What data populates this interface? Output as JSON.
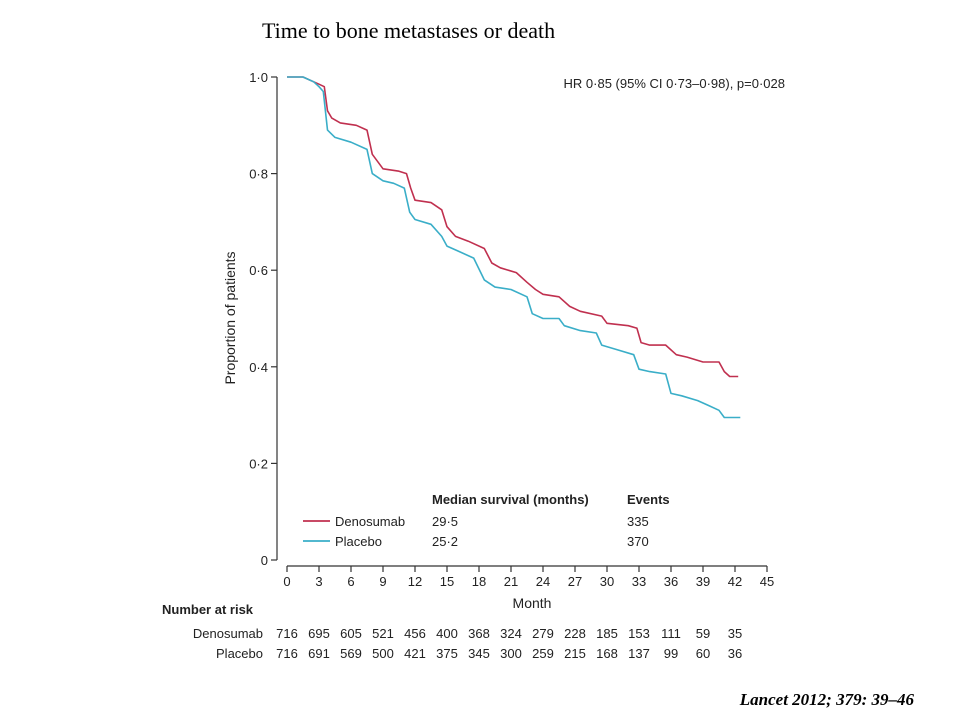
{
  "slide": {
    "title": "Time to bone metastases or death",
    "citation": "Lancet 2012; 379: 39–46"
  },
  "chart_data": {
    "type": "line",
    "title": "",
    "xlabel": "Month",
    "ylabel": "Proportion of patients",
    "xlim": [
      0,
      45
    ],
    "ylim": [
      0,
      1.0
    ],
    "x_ticks": [
      0,
      3,
      6,
      9,
      12,
      15,
      18,
      21,
      24,
      27,
      30,
      33,
      36,
      39,
      42,
      45
    ],
    "y_ticks": [
      {
        "value": 0,
        "label": "0"
      },
      {
        "value": 0.2,
        "label": "0·2"
      },
      {
        "value": 0.4,
        "label": "0·4"
      },
      {
        "value": 0.6,
        "label": "0·6"
      },
      {
        "value": 0.8,
        "label": "0·8"
      },
      {
        "value": 1.0,
        "label": "1·0"
      }
    ],
    "grid": false,
    "annotation": "HR 0·85 (95% CI 0·73–0·98), p=0·028",
    "legend": {
      "placement": "bottom-center",
      "headers": [
        "Median survival (months)",
        "Events"
      ],
      "rows": [
        {
          "name": "Denosumab",
          "median": "29·5",
          "events": "335"
        },
        {
          "name": "Placebo",
          "median": "25·2",
          "events": "370"
        }
      ]
    },
    "series": [
      {
        "name": "Denosumab",
        "color": "#c0304f",
        "points": [
          [
            0,
            1.0
          ],
          [
            1.5,
            1.0
          ],
          [
            2.5,
            0.99
          ],
          [
            3.0,
            0.985
          ],
          [
            3.5,
            0.98
          ],
          [
            3.8,
            0.93
          ],
          [
            4.2,
            0.915
          ],
          [
            5.0,
            0.905
          ],
          [
            6.5,
            0.9
          ],
          [
            7.5,
            0.89
          ],
          [
            8.0,
            0.84
          ],
          [
            9.0,
            0.81
          ],
          [
            10.5,
            0.805
          ],
          [
            11.2,
            0.8
          ],
          [
            11.6,
            0.77
          ],
          [
            12.0,
            0.745
          ],
          [
            13.5,
            0.74
          ],
          [
            14.5,
            0.725
          ],
          [
            15.0,
            0.69
          ],
          [
            15.8,
            0.67
          ],
          [
            17.0,
            0.66
          ],
          [
            18.5,
            0.645
          ],
          [
            19.2,
            0.615
          ],
          [
            20.0,
            0.605
          ],
          [
            21.5,
            0.595
          ],
          [
            22.5,
            0.575
          ],
          [
            23.3,
            0.56
          ],
          [
            24.0,
            0.55
          ],
          [
            25.5,
            0.545
          ],
          [
            26.5,
            0.525
          ],
          [
            27.5,
            0.515
          ],
          [
            29.5,
            0.505
          ],
          [
            30.0,
            0.49
          ],
          [
            32.0,
            0.485
          ],
          [
            32.8,
            0.48
          ],
          [
            33.2,
            0.45
          ],
          [
            34.0,
            0.445
          ],
          [
            35.5,
            0.445
          ],
          [
            36.5,
            0.425
          ],
          [
            37.5,
            0.42
          ],
          [
            39.0,
            0.41
          ],
          [
            40.5,
            0.41
          ],
          [
            41.0,
            0.39
          ],
          [
            41.5,
            0.38
          ],
          [
            42.3,
            0.38
          ]
        ]
      },
      {
        "name": "Placebo",
        "color": "#3aaec8",
        "points": [
          [
            0,
            1.0
          ],
          [
            1.5,
            1.0
          ],
          [
            2.5,
            0.99
          ],
          [
            3.0,
            0.98
          ],
          [
            3.4,
            0.97
          ],
          [
            3.8,
            0.89
          ],
          [
            4.5,
            0.875
          ],
          [
            6.0,
            0.865
          ],
          [
            7.5,
            0.85
          ],
          [
            8.0,
            0.8
          ],
          [
            9.0,
            0.785
          ],
          [
            10.0,
            0.78
          ],
          [
            11.0,
            0.77
          ],
          [
            11.5,
            0.72
          ],
          [
            12.0,
            0.705
          ],
          [
            13.5,
            0.695
          ],
          [
            14.5,
            0.67
          ],
          [
            15.0,
            0.65
          ],
          [
            16.0,
            0.64
          ],
          [
            17.5,
            0.625
          ],
          [
            18.5,
            0.58
          ],
          [
            19.5,
            0.565
          ],
          [
            21.0,
            0.56
          ],
          [
            22.5,
            0.545
          ],
          [
            23.0,
            0.51
          ],
          [
            24.0,
            0.5
          ],
          [
            25.5,
            0.5
          ],
          [
            26.0,
            0.485
          ],
          [
            27.5,
            0.475
          ],
          [
            29.0,
            0.47
          ],
          [
            29.5,
            0.445
          ],
          [
            31.0,
            0.435
          ],
          [
            32.5,
            0.425
          ],
          [
            33.0,
            0.395
          ],
          [
            34.0,
            0.39
          ],
          [
            35.5,
            0.385
          ],
          [
            36.0,
            0.345
          ],
          [
            37.0,
            0.34
          ],
          [
            38.5,
            0.33
          ],
          [
            39.5,
            0.32
          ],
          [
            40.5,
            0.31
          ],
          [
            41.0,
            0.295
          ],
          [
            42.5,
            0.295
          ]
        ]
      }
    ],
    "number_at_risk": {
      "title": "Number at risk",
      "rows": [
        {
          "name": "Denosumab",
          "values": [
            716,
            695,
            605,
            521,
            456,
            400,
            368,
            324,
            279,
            228,
            185,
            153,
            111,
            59,
            35
          ]
        },
        {
          "name": "Placebo",
          "values": [
            716,
            691,
            569,
            500,
            421,
            375,
            345,
            300,
            259,
            215,
            168,
            137,
            99,
            60,
            36
          ]
        }
      ]
    }
  }
}
